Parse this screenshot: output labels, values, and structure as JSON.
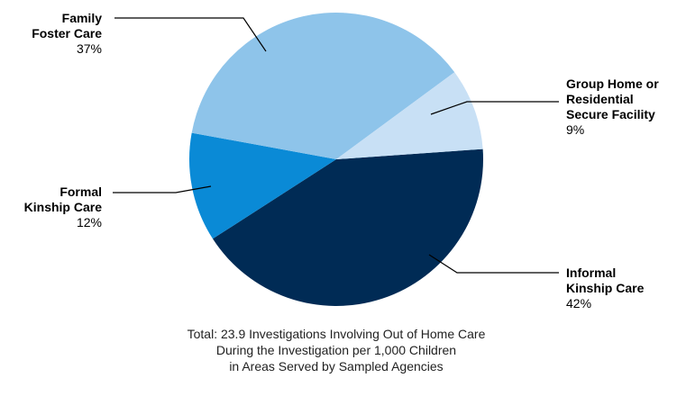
{
  "chart_data": {
    "type": "pie",
    "categories": [
      "Informal Kinship Care",
      "Formal Kinship Care",
      "Family Foster Care",
      "Group Home or Residential Secure Facility"
    ],
    "values": [
      42,
      12,
      37,
      9
    ],
    "value_labels": [
      "42%",
      "12%",
      "37%",
      "9%"
    ],
    "colors": [
      "#002b55",
      "#0a8ad6",
      "#8ec4ea",
      "#c8e0f5"
    ],
    "note": [
      "Total: 23.9 Investigations Involving Out of Home Care",
      "During the Investigation per 1,000 Children",
      "in Areas Served by Sampled Agencies"
    ]
  }
}
